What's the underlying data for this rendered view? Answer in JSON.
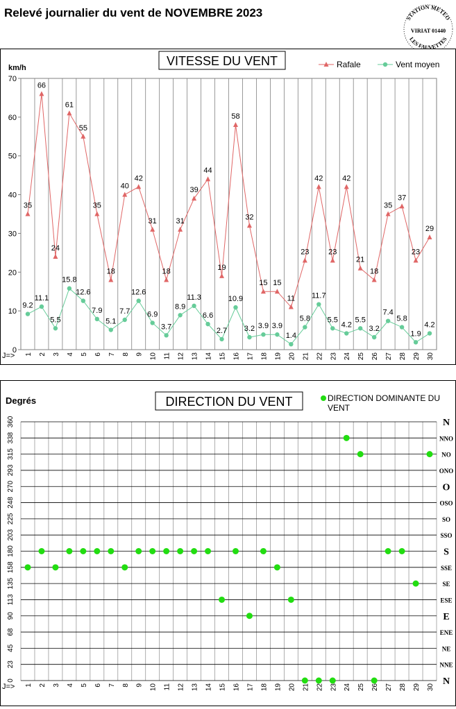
{
  "page": {
    "title": "Relevé journalier du vent de NOVEMBRE 2023",
    "stamp": {
      "top": "STATION METEO",
      "middle": "VIRIAT 01440",
      "bottom": "LES FAUVETTES"
    }
  },
  "chart_data": [
    {
      "type": "line",
      "title": "VITESSE DU VENT",
      "ylabel": "km/h",
      "xlabel": "J=>",
      "ylim": [
        0,
        70
      ],
      "yticks": [
        0,
        10,
        20,
        30,
        40,
        50,
        60,
        70
      ],
      "grid": "vertical",
      "legend": "top-right",
      "x": [
        1,
        2,
        3,
        4,
        5,
        6,
        7,
        8,
        9,
        10,
        11,
        12,
        13,
        14,
        15,
        16,
        17,
        18,
        19,
        20,
        21,
        22,
        23,
        24,
        25,
        26,
        27,
        28,
        29,
        30
      ],
      "series": [
        {
          "name": "Rafale",
          "color": "#e06666",
          "marker": "triangle",
          "values": [
            35,
            66,
            24,
            61,
            55,
            35,
            18,
            40,
            42,
            31,
            18,
            31,
            39,
            44,
            19,
            58,
            32,
            15,
            15,
            11,
            23,
            42,
            23,
            42,
            21,
            18,
            35,
            37,
            23,
            29
          ],
          "labels": [
            "35",
            "66",
            "24",
            "61",
            "55",
            "35",
            "18",
            "40",
            "42",
            "31",
            "18",
            "31",
            "39",
            "44",
            "19",
            "58",
            "32",
            "15",
            "15",
            "11",
            "23",
            "42",
            "23",
            "42",
            "21",
            "18",
            "35",
            "37",
            "23",
            "29"
          ]
        },
        {
          "name": "Vent moyen",
          "color": "#66cc99",
          "marker": "circle",
          "values": [
            9.2,
            11.1,
            5.5,
            15.8,
            12.6,
            7.9,
            5.1,
            7.7,
            12.6,
            6.9,
            3.7,
            8.9,
            11.3,
            6.6,
            2.7,
            10.9,
            3.2,
            3.9,
            3.9,
            1.4,
            5.8,
            11.7,
            5.5,
            4.2,
            5.5,
            3.2,
            7.4,
            5.8,
            1.9,
            4.2
          ],
          "labels": [
            "9.2",
            "11.1",
            "5.5",
            "15.8",
            "12.6",
            "7.9",
            "5.1",
            "7.7",
            "12.6",
            "6.9",
            "3.7",
            "8.9",
            "11.3",
            "6.6",
            "2.7",
            "10.9",
            "3.2",
            "3.9",
            "3.9",
            "1.4",
            "5.8",
            "11.7",
            "5.5",
            "4.2",
            "5.5",
            "3.2",
            "7.4",
            "5.8",
            "1.9",
            "4.2"
          ]
        }
      ]
    },
    {
      "type": "scatter",
      "title": "DIRECTION DU VENT",
      "ylabel": "Degrés",
      "xlabel": "J=>",
      "ylim": [
        0,
        360
      ],
      "yticks": [
        "0",
        "23",
        "45",
        "68",
        "90",
        "113",
        "135",
        "158",
        "180",
        "203",
        "225",
        "248",
        "270",
        "293",
        "315",
        "338",
        "360"
      ],
      "yticks_right": [
        "N",
        "NNE",
        "NE",
        "ENE",
        "E",
        "ESE",
        "SE",
        "SSE",
        "S",
        "SSO",
        "SO",
        "OSO",
        "O",
        "ONO",
        "NO",
        "NNO",
        "N"
      ],
      "grid": "both",
      "legend": "top-right",
      "x": [
        1,
        2,
        3,
        4,
        5,
        6,
        7,
        8,
        9,
        10,
        11,
        12,
        13,
        14,
        15,
        16,
        17,
        18,
        19,
        20,
        21,
        22,
        23,
        24,
        25,
        26,
        27,
        28,
        29,
        30
      ],
      "series": [
        {
          "name": "DIRECTION DOMINANTE DU VENT",
          "color": "#22dd11",
          "values": [
            157.5,
            180,
            157.5,
            180,
            180,
            180,
            180,
            157.5,
            180,
            180,
            180,
            180,
            180,
            180,
            112.5,
            180,
            90,
            180,
            157.5,
            112.5,
            0,
            0,
            0,
            337.5,
            315,
            0,
            180,
            180,
            135,
            315
          ]
        }
      ]
    }
  ]
}
